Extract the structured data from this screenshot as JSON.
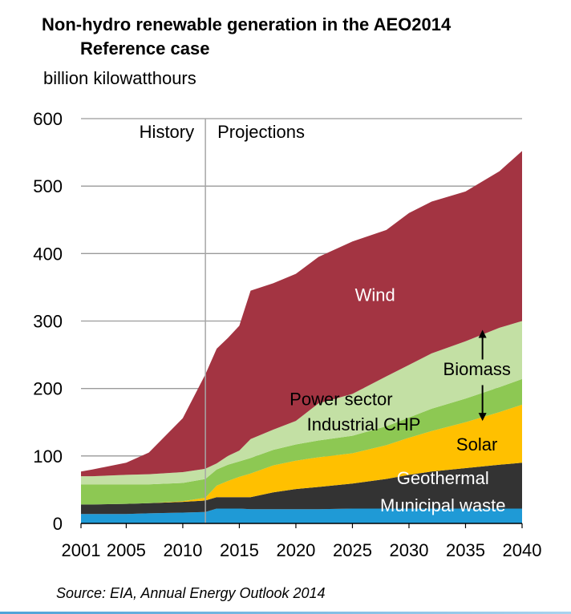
{
  "title_line1": "Non-hydro renewable generation in the AEO2014",
  "title_line2": "Reference  case",
  "unit_label": "billion kilowatthours",
  "source": "Source: EIA, Annual Energy Outlook 2014",
  "chart_data": {
    "type": "area",
    "stacked": true,
    "ylim": [
      0,
      600
    ],
    "xlim": [
      2001,
      2040
    ],
    "yticks": [
      0,
      100,
      200,
      300,
      400,
      500,
      600
    ],
    "xticks": [
      {
        "value": 2001,
        "label": "2001"
      },
      {
        "value": 2005,
        "label": "2005"
      },
      {
        "value": 2010,
        "label": "2010"
      },
      {
        "value": 2015,
        "label": "2015"
      },
      {
        "value": 2020,
        "label": "2020"
      },
      {
        "value": 2025,
        "label": "2025"
      },
      {
        "value": 2030,
        "label": "2030"
      },
      {
        "value": 2035,
        "label": "2035"
      },
      {
        "value": 2040,
        "label": "2040"
      }
    ],
    "grid": true,
    "divider_year": 2012,
    "history_label": "History",
    "projections_label": "Projections",
    "x": [
      2001,
      2002,
      2005,
      2007,
      2010,
      2012,
      2013,
      2014,
      2015,
      2016,
      2018,
      2020,
      2022,
      2025,
      2028,
      2030,
      2032,
      2035,
      2038,
      2040
    ],
    "series": [
      {
        "name": "Municipal waste",
        "color": "#1f9ad6",
        "values": [
          14,
          14,
          14,
          15,
          16,
          17,
          22,
          22,
          22,
          21,
          21,
          21,
          21,
          22,
          22,
          22,
          22,
          22,
          22,
          22
        ]
      },
      {
        "name": "Geothermal",
        "color": "#333333",
        "values": [
          14,
          14,
          15,
          15,
          16,
          17,
          17,
          17,
          17,
          18,
          25,
          30,
          33,
          37,
          44,
          50,
          55,
          60,
          65,
          68
        ]
      },
      {
        "name": "Solar",
        "color": "#ffc000",
        "values": [
          0,
          0,
          0,
          0,
          1,
          4,
          17,
          24,
          30,
          35,
          40,
          42,
          44,
          45,
          50,
          55,
          60,
          68,
          78,
          86
        ]
      },
      {
        "name": "Industrial CHP",
        "color": "#8dc853",
        "values": [
          30,
          30,
          29,
          28,
          27,
          28,
          24,
          24,
          23,
          23,
          23,
          24,
          25,
          26,
          28,
          30,
          33,
          35,
          37,
          38
        ]
      },
      {
        "name": "Power sector",
        "color": "#c3e0a4",
        "values": [
          12,
          12,
          14,
          15,
          16,
          15,
          9,
          13,
          16,
          28,
          30,
          35,
          55,
          62,
          74,
          78,
          82,
          85,
          88,
          86
        ]
      },
      {
        "name": "Wind",
        "color": "#a33442",
        "values": [
          7,
          10,
          18,
          32,
          80,
          140,
          170,
          175,
          185,
          220,
          217,
          218,
          217,
          226,
          217,
          225,
          225,
          222,
          232,
          252
        ]
      }
    ],
    "annotations": [
      {
        "text": "Wind",
        "x": 2027,
        "y": 330
      },
      {
        "text": "Biomass",
        "x": 2039,
        "y": 220
      },
      {
        "text": "Power sector",
        "x": 2024,
        "y": 175
      },
      {
        "text": "Industrial CHP",
        "x": 2026,
        "y": 138
      },
      {
        "text": "Solar",
        "x": 2036,
        "y": 108
      },
      {
        "text": "Geothermal",
        "x": 2033,
        "y": 58
      },
      {
        "text": "Municipal waste",
        "x": 2033,
        "y": 18
      }
    ]
  }
}
